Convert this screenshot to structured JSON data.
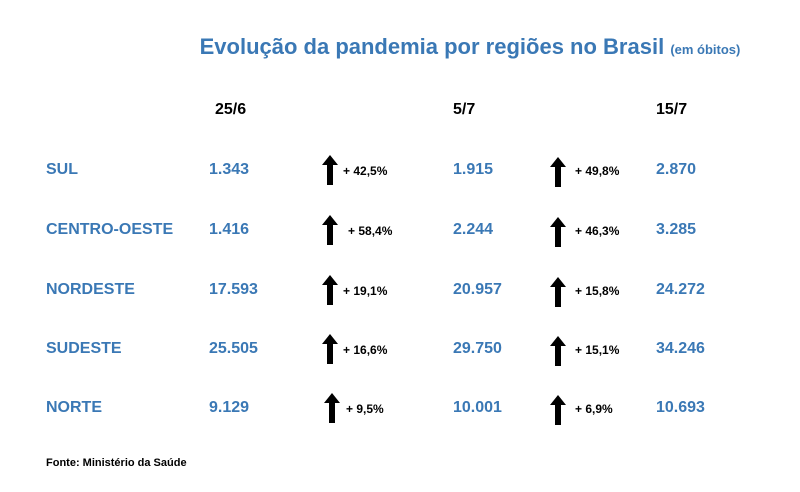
{
  "title": {
    "main": "Evolução da pandemia por regiões no Brasil",
    "unit": "(em óbitos)"
  },
  "headers": [
    "25/6",
    "5/7",
    "15/7"
  ],
  "rows": [
    {
      "region": "SUL",
      "v1": "1.343",
      "c1": "+ 42,5%",
      "v2": "1.915",
      "c2": "+ 49,8%",
      "v3": "2.870"
    },
    {
      "region": "CENTRO-OESTE",
      "v1": "1.416",
      "c1": "+ 58,4%",
      "v2": "2.244",
      "c2": "+ 46,3%",
      "v3": "3.285"
    },
    {
      "region": "NORDESTE",
      "v1": "17.593",
      "c1": "+ 19,1%",
      "v2": "20.957",
      "c2": "+ 15,8%",
      "v3": "24.272"
    },
    {
      "region": "SUDESTE",
      "v1": "25.505",
      "c1": "+ 16,6%",
      "v2": "29.750",
      "c2": "+ 15,1%",
      "v3": "34.246"
    },
    {
      "region": "NORTE",
      "v1": "9.129",
      "c1": "+ 9,5%",
      "v2": "10.001",
      "c2": "+ 6,9%",
      "v3": "10.693"
    }
  ],
  "icons": {
    "change": "arrow-up-icon"
  },
  "colors": {
    "accent": "#3a78b5",
    "text": "#000000"
  },
  "source": "Fonte: Ministério da Saúde"
}
